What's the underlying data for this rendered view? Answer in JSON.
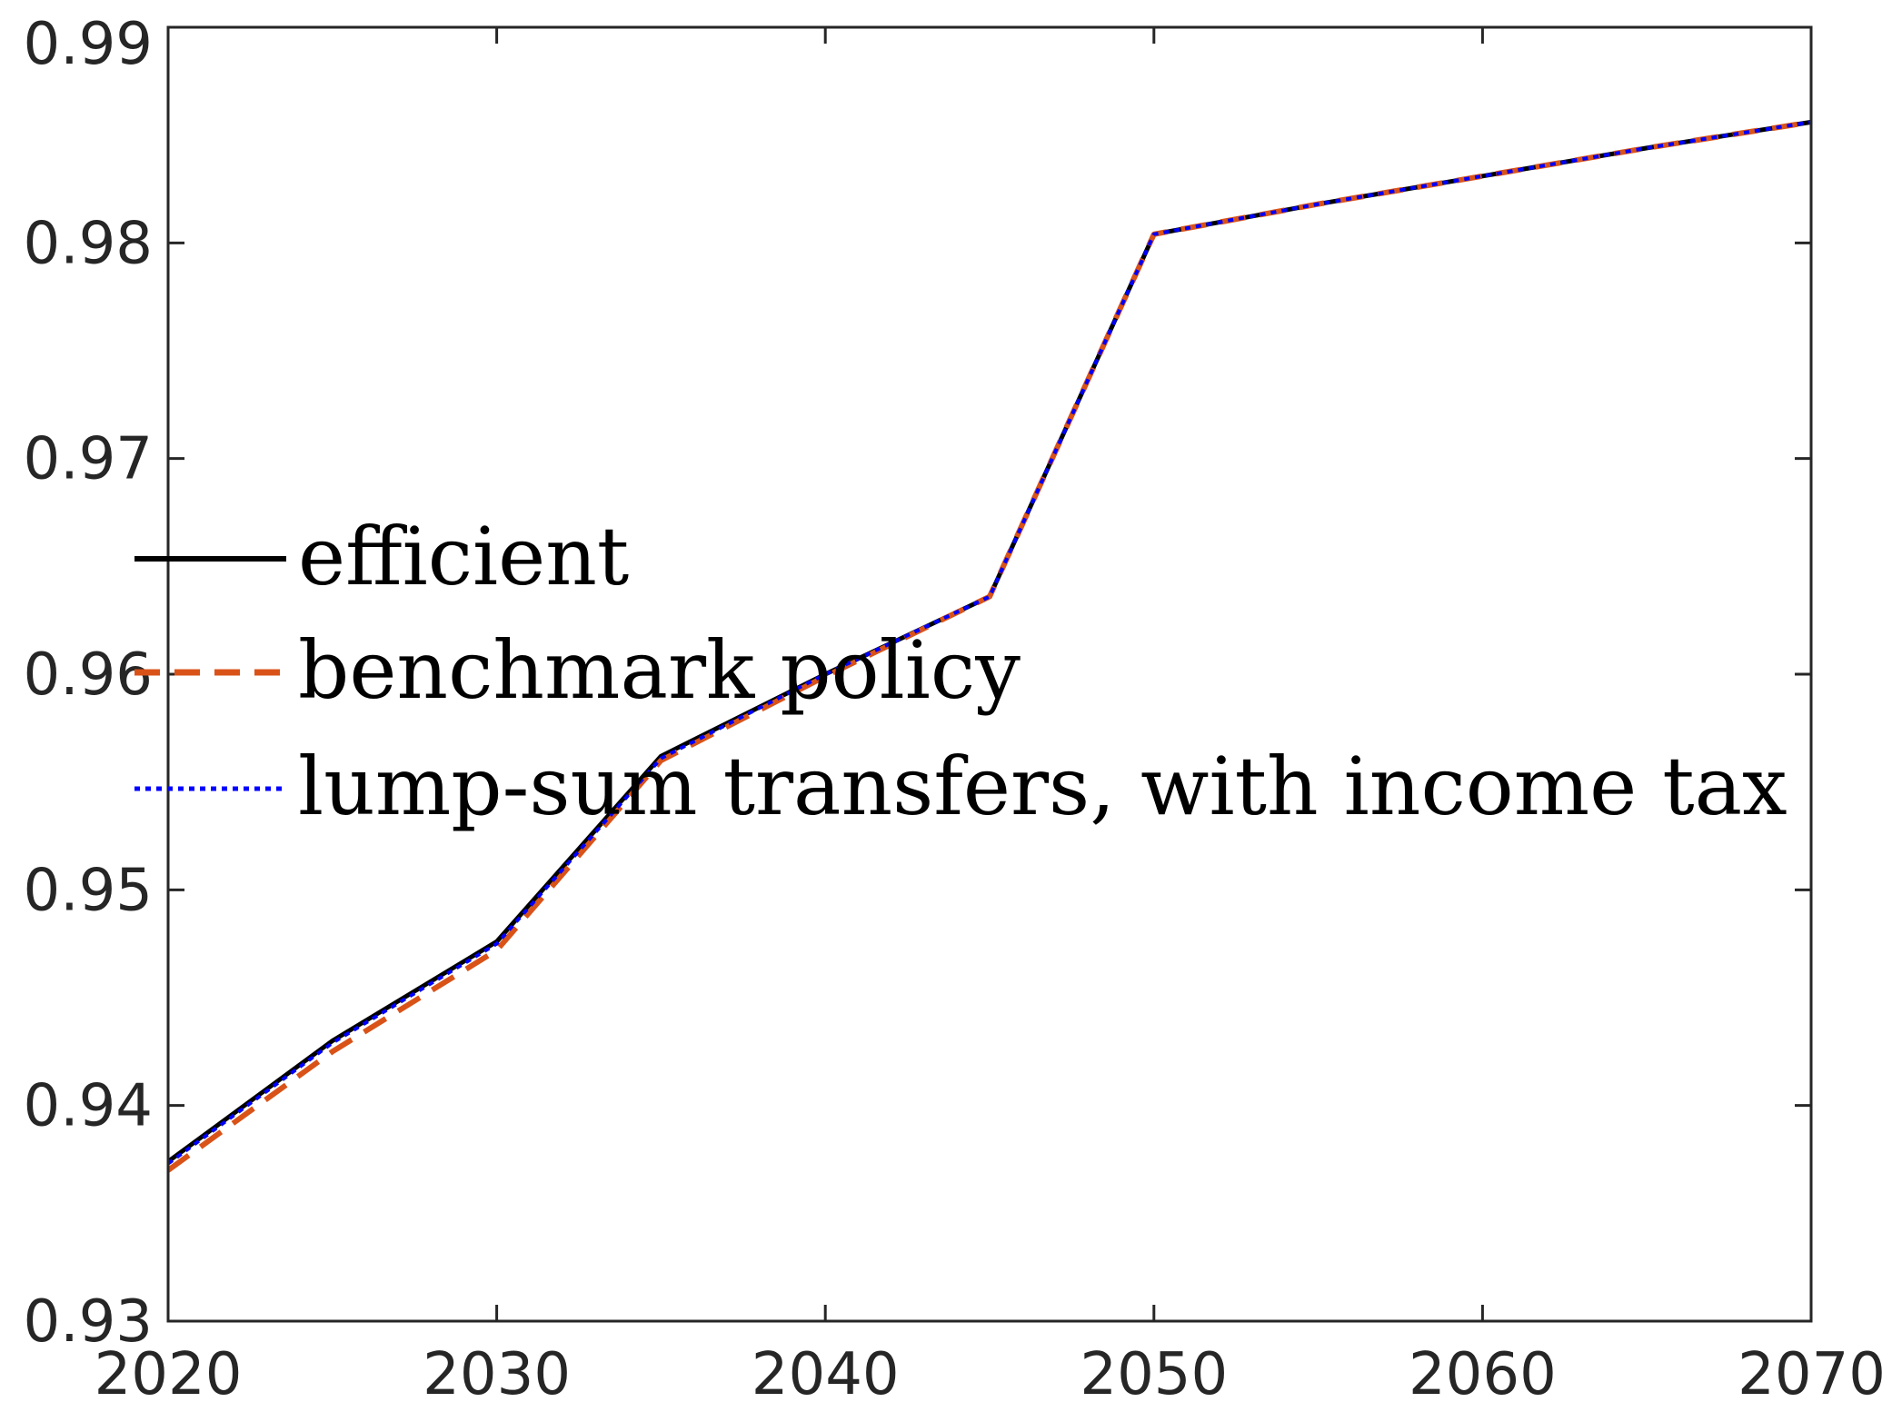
{
  "chart_data": {
    "type": "line",
    "title": "",
    "xlabel": "",
    "ylabel": "",
    "xlim": [
      2020,
      2070
    ],
    "ylim": [
      0.93,
      0.99
    ],
    "x_ticks": [
      2020,
      2030,
      2040,
      2050,
      2060,
      2070
    ],
    "y_ticks": [
      0.93,
      0.94,
      0.95,
      0.96,
      0.97,
      0.98,
      0.99
    ],
    "x_tick_labels": [
      "2020",
      "2030",
      "2040",
      "2050",
      "2060",
      "2070"
    ],
    "y_tick_labels": [
      "0.93",
      "0.94",
      "0.95",
      "0.96",
      "0.97",
      "0.98",
      "0.99"
    ],
    "grid": false,
    "legend_position": "center-left",
    "x": [
      2020,
      2025,
      2030,
      2035,
      2040,
      2045,
      2050,
      2055,
      2060,
      2065,
      2070
    ],
    "series": [
      {
        "name": "efficient",
        "color": "#000000",
        "style": "solid",
        "values": [
          0.9374,
          0.943,
          0.9476,
          0.9562,
          0.96,
          0.9636,
          0.9804,
          0.9818,
          0.9831,
          0.9844,
          0.9856
        ]
      },
      {
        "name": "benchmark policy",
        "color": "#D95319",
        "style": "dashed",
        "values": [
          0.937,
          0.9425,
          0.9472,
          0.956,
          0.9599,
          0.9636,
          0.9804,
          0.9818,
          0.9831,
          0.9844,
          0.9856
        ]
      },
      {
        "name": "lump-sum transfers, with income tax",
        "color": "#0000FF",
        "style": "dotted",
        "values": [
          0.9373,
          0.9429,
          0.9475,
          0.9561,
          0.96,
          0.9636,
          0.9804,
          0.9818,
          0.9831,
          0.9844,
          0.9856
        ]
      }
    ]
  }
}
